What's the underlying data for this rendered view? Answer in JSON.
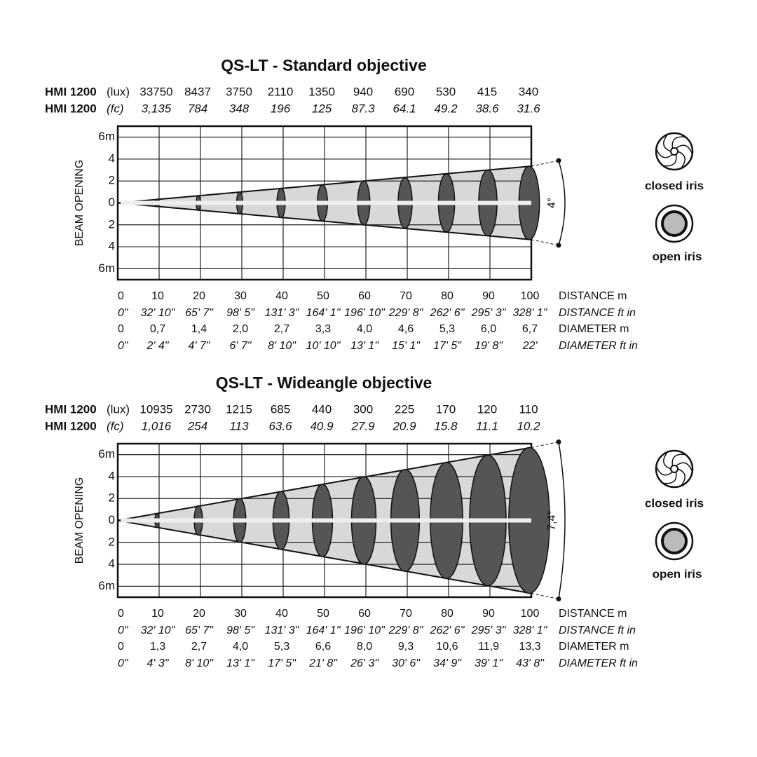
{
  "panels": [
    {
      "title": "QS-LT - Standard objective",
      "rows": [
        {
          "name": "HMI 1200",
          "unit": "(lux)",
          "values": [
            33750,
            8437,
            3750,
            2110,
            1350,
            940,
            690,
            530,
            415,
            340
          ]
        },
        {
          "name": "HMI 1200",
          "unit": "(fc)",
          "values": [
            "3,135",
            "784",
            "348",
            "196",
            "125",
            "87.3",
            "64.1",
            "49.2",
            "38.6",
            "31.6"
          ]
        }
      ],
      "y_label": "BEAM OPENING",
      "ylim": [
        -7,
        7
      ],
      "yticks": [
        {
          "value": 6,
          "label": "6m"
        },
        4,
        2,
        0,
        {
          "value": -2,
          "label": "2"
        },
        {
          "value": -4,
          "label": "4"
        },
        {
          "value": -6,
          "label": "6m"
        }
      ],
      "xlim": [
        0,
        100
      ],
      "xticks": [
        0,
        10,
        20,
        30,
        40,
        50,
        60,
        70,
        80,
        90,
        100
      ],
      "distance_m_label": "DISTANCE m",
      "distance_ft": [
        "0\"",
        "32' 10\"",
        "65' 7\"",
        "98' 5\"",
        "131' 3\"",
        "164' 1\"",
        "196' 10\"",
        "229' 8\"",
        "262' 6\"",
        "295' 3\"",
        "328' 1\""
      ],
      "distance_ft_label": "DISTANCE ft in",
      "diameter_m": [
        0,
        {
          "value": 0.7,
          "label": "0,7"
        },
        {
          "value": 1.4,
          "label": "1,4"
        },
        {
          "value": 2.0,
          "label": "2,0"
        },
        {
          "value": 2.7,
          "label": "2,7"
        },
        {
          "value": 3.3,
          "label": "3,3"
        },
        {
          "value": 4.0,
          "label": "4,0"
        },
        {
          "value": 4.6,
          "label": "4,6"
        },
        {
          "value": 5.3,
          "label": "5,3"
        },
        {
          "value": 6.0,
          "label": "6,0"
        },
        {
          "value": 6.7,
          "label": "6,7"
        }
      ],
      "diameter_m_label": "DIAMETER m",
      "diameter_ft": [
        "0\"",
        "2' 4\"",
        "4' 7\"",
        "6' 7\"",
        "8' 10\"",
        "10' 10\"",
        "13' 1\"",
        "15' 1\"",
        "17' 5\"",
        "19' 8\"",
        "22'"
      ],
      "diameter_ft_label": "DIAMETER ft in",
      "angle": "4°",
      "closed_iris": "closed iris",
      "open_iris": "open iris"
    },
    {
      "title": "QS-LT - Wideangle objective",
      "rows": [
        {
          "name": "HMI 1200",
          "unit": "(lux)",
          "values": [
            10935,
            2730,
            1215,
            685,
            440,
            300,
            225,
            170,
            120,
            110
          ]
        },
        {
          "name": "HMI 1200",
          "unit": "(fc)",
          "values": [
            "1,016",
            "254",
            "113",
            "63.6",
            "40.9",
            "27.9",
            "20.9",
            "15.8",
            "11.1",
            "10.2"
          ]
        }
      ],
      "y_label": "BEAM OPENING",
      "ylim": [
        -7,
        7
      ],
      "yticks": [
        {
          "value": 6,
          "label": "6m"
        },
        4,
        2,
        0,
        {
          "value": -2,
          "label": "2"
        },
        {
          "value": -4,
          "label": "4"
        },
        {
          "value": -6,
          "label": "6m"
        }
      ],
      "xlim": [
        0,
        100
      ],
      "xticks": [
        0,
        10,
        20,
        30,
        40,
        50,
        60,
        70,
        80,
        90,
        100
      ],
      "distance_m_label": "DISTANCE m",
      "distance_ft": [
        "0\"",
        "32' 10\"",
        "65' 7\"",
        "98' 5\"",
        "131' 3\"",
        "164' 1\"",
        "196' 10\"",
        "229' 8\"",
        "262' 6\"",
        "295' 3\"",
        "328' 1\""
      ],
      "distance_ft_label": "DISTANCE ft in",
      "diameter_m": [
        0,
        {
          "value": 1.3,
          "label": "1,3"
        },
        {
          "value": 2.7,
          "label": "2,7"
        },
        {
          "value": 4.0,
          "label": "4,0"
        },
        {
          "value": 5.3,
          "label": "5,3"
        },
        {
          "value": 6.6,
          "label": "6,6"
        },
        {
          "value": 8.0,
          "label": "8,0"
        },
        {
          "value": 9.3,
          "label": "9,3"
        },
        {
          "value": 10.6,
          "label": "10,6"
        },
        {
          "value": 11.9,
          "label": "11,9"
        },
        {
          "value": 13.3,
          "label": "13,3"
        }
      ],
      "diameter_m_label": "DIAMETER m",
      "diameter_ft": [
        "0\"",
        "4' 3\"",
        "8' 10\"",
        "13' 1\"",
        "17' 5\"",
        "21' 8\"",
        "26' 3\"",
        "30' 6\"",
        "34' 9\"",
        "39' 1\"",
        "43' 8\""
      ],
      "diameter_ft_label": "DIAMETER ft in",
      "angle": "7,4°",
      "closed_iris": "closed iris",
      "open_iris": "open iris"
    }
  ]
}
